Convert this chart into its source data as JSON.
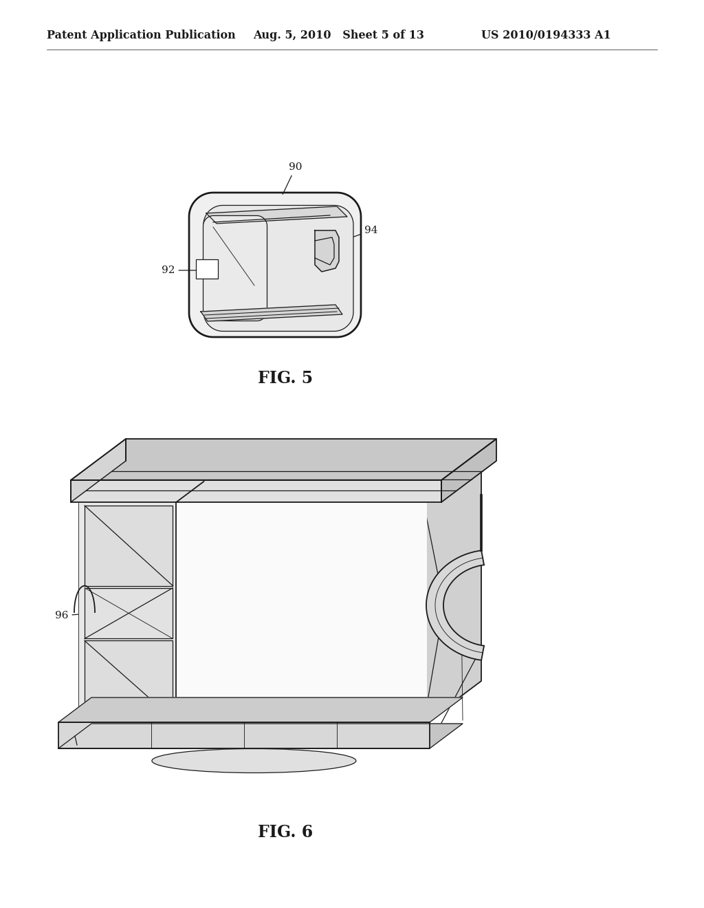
{
  "bg_color": "#ffffff",
  "header_left": "Patent Application Publication",
  "header_mid": "Aug. 5, 2010   Sheet 5 of 13",
  "header_right": "US 2010/0194333 A1",
  "line_color": "#1a1a1a",
  "fig5_label": "FIG. 5",
  "fig6_label": "FIG. 6",
  "leader_fontsize": 11,
  "fig_label_fontsize": 17,
  "header_fontsize": 11.5
}
